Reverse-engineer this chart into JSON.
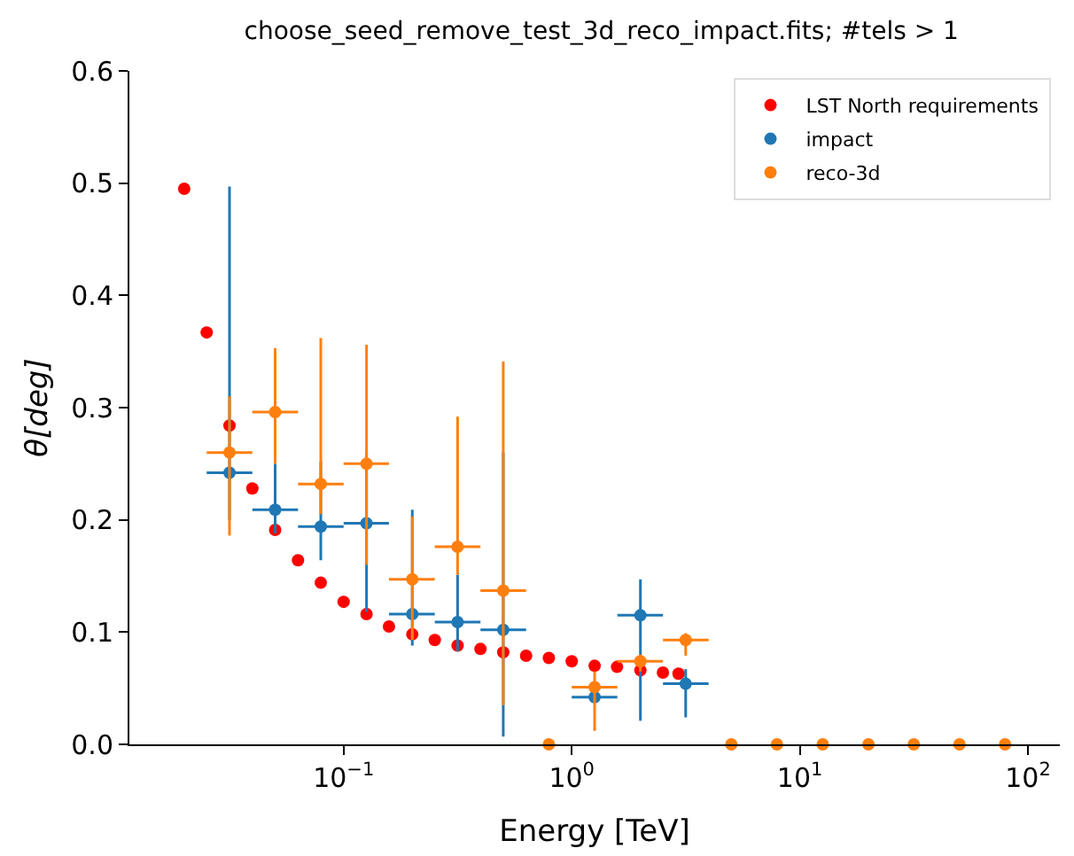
{
  "chart_data": {
    "type": "scatter",
    "title": "choose_seed_remove_test_3d_reco_impact.fits; #tels > 1",
    "xlabel": "Energy [TeV]",
    "ylabel": "θ[deg]",
    "log": "x",
    "xlim": [
      0.0115,
      138
    ],
    "xticks": [
      {
        "value": 0.1,
        "label": "10$^{−1}$"
      },
      {
        "value": 1,
        "label": "10$^{0}$"
      },
      {
        "value": 10,
        "label": "10$^{1}$"
      },
      {
        "value": 100,
        "label": "10$^{2}$"
      }
    ],
    "ylim": [
      0,
      0.6
    ],
    "yticks": [
      {
        "value": 0,
        "label": "0.0"
      },
      0.1,
      0.2,
      0.3,
      0.4,
      0.5,
      {
        "value": 0.6,
        "label": "0.6"
      }
    ],
    "legend": "top right",
    "series": [
      {
        "name": "LST North requirements",
        "color": "#ff0000",
        "x": [
          0.02,
          0.0251,
          0.0316,
          0.0398,
          0.0501,
          0.0631,
          0.0794,
          0.1,
          0.126,
          0.158,
          0.2,
          0.251,
          0.316,
          0.398,
          0.501,
          0.631,
          0.794,
          1.0,
          1.26,
          1.58,
          2.0,
          2.51,
          2.94
        ],
        "values": [
          0.495,
          0.367,
          0.284,
          0.228,
          0.191,
          0.164,
          0.144,
          0.127,
          0.116,
          0.105,
          0.098,
          0.093,
          0.088,
          0.085,
          0.082,
          0.079,
          0.077,
          0.074,
          0.07,
          0.069,
          0.066,
          0.064,
          0.063
        ]
      },
      {
        "name": "impact",
        "color": "#1f77b4",
        "x": [
          0.0316,
          0.0501,
          0.0794,
          0.126,
          0.2,
          0.316,
          0.501,
          0.794,
          1.26,
          2.0,
          3.16
        ],
        "values": [
          0.242,
          0.209,
          0.194,
          0.197,
          0.116,
          0.109,
          0.102,
          null,
          0.042,
          0.115,
          0.054
        ],
        "errors": [
          [
            0.2,
            0.497
          ],
          [
            0.188,
            0.25
          ],
          [
            0.164,
            0.252
          ],
          [
            0.118,
            0.26
          ],
          [
            0.088,
            0.209
          ],
          [
            0.083,
            0.151
          ],
          [
            0.007,
            0.26
          ],
          null,
          null,
          [
            0.021,
            0.147
          ],
          [
            0.024,
            0.067
          ]
        ],
        "xerrors": [
          [
            0.0251,
            0.0398
          ],
          [
            0.0398,
            0.0631
          ],
          [
            0.0631,
            0.1
          ],
          [
            0.1,
            0.158
          ],
          [
            0.158,
            0.251
          ],
          [
            0.251,
            0.398
          ],
          [
            0.398,
            0.631
          ],
          null,
          [
            1.0,
            1.585
          ],
          [
            1.585,
            2.512
          ],
          [
            2.512,
            3.981
          ]
        ]
      },
      {
        "name": "reco-3d",
        "color": "#ff7f0e",
        "x": [
          0.0316,
          0.0501,
          0.0794,
          0.126,
          0.2,
          0.316,
          0.501,
          0.794,
          1.26,
          2.0,
          3.16,
          5.01,
          7.94,
          12.6,
          20.0,
          31.6,
          50.1,
          79.4
        ],
        "values": [
          0.26,
          0.296,
          0.232,
          0.25,
          0.147,
          0.176,
          0.137,
          0,
          0.051,
          0.074,
          0.093,
          0,
          0,
          0,
          0,
          0,
          0,
          0
        ],
        "errors": [
          [
            0.186,
            0.31
          ],
          [
            0.25,
            0.353
          ],
          [
            0.205,
            0.362
          ],
          [
            0.16,
            0.356
          ],
          [
            0.093,
            0.203
          ],
          [
            0.151,
            0.292
          ],
          [
            0.035,
            0.341
          ],
          null,
          [
            0.012,
            0.065
          ],
          [
            0.065,
            0.08
          ],
          [
            0.079,
            0.099
          ],
          null,
          null,
          null,
          null,
          null,
          null,
          null
        ],
        "xerrors": [
          [
            0.0251,
            0.0398
          ],
          [
            0.0398,
            0.0631
          ],
          [
            0.0631,
            0.1
          ],
          [
            0.1,
            0.158
          ],
          [
            0.158,
            0.251
          ],
          [
            0.251,
            0.398
          ],
          [
            0.398,
            0.631
          ],
          null,
          [
            1.0,
            1.585
          ],
          [
            1.585,
            2.512
          ],
          [
            2.512,
            3.981
          ],
          null,
          null,
          null,
          null,
          null,
          null,
          null
        ]
      }
    ]
  }
}
